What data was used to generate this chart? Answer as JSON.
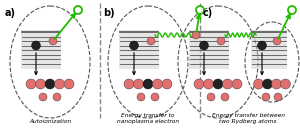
{
  "background": "#ffffff",
  "panel_labels": [
    "a)",
    "b)",
    "c)"
  ],
  "captions": [
    "Autoionization",
    "Energy transfer to\nnanoplasma electron",
    "Energy transfer between\ntwo Rydberg atoms"
  ],
  "pink": "#E07070",
  "dark": "#222222",
  "green": "#22bb00",
  "gray_line": "#777777",
  "oval_color": "#555555",
  "sep_color": "#888888"
}
